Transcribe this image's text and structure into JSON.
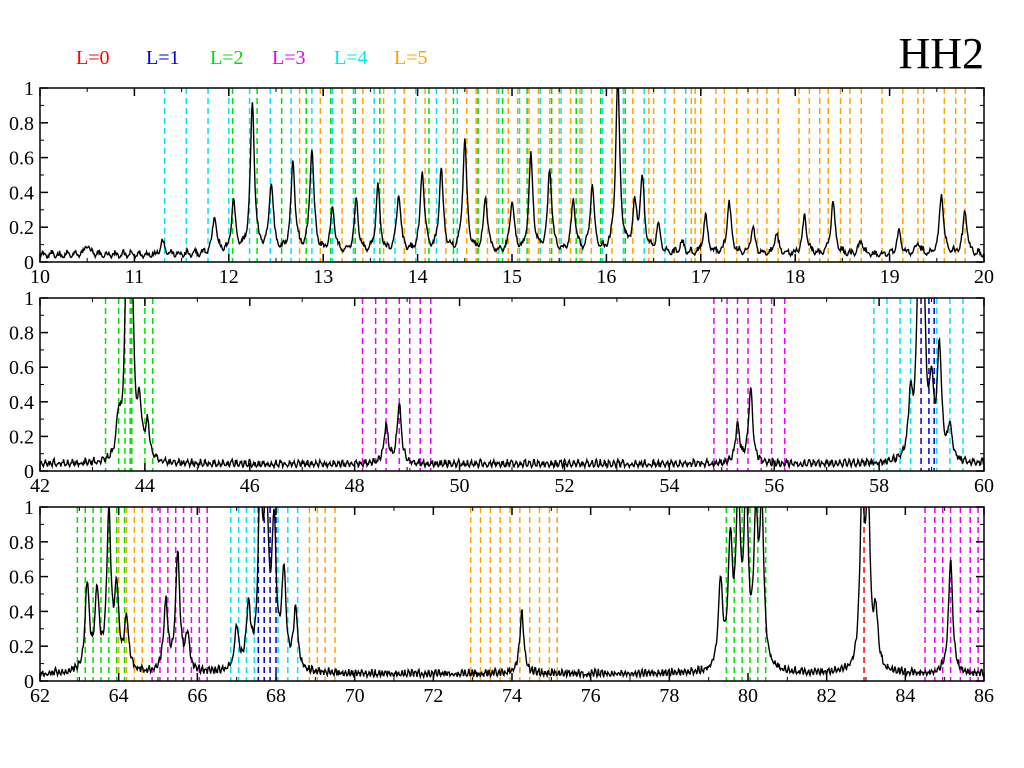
{
  "title": "HH2",
  "colors": {
    "L0": "#ff0000",
    "L1": "#0000cc",
    "L2": "#00e000",
    "L3": "#ee00ee",
    "L4": "#00e5ee",
    "L5": "#ffa500",
    "curve": "#000000"
  },
  "legend": [
    {
      "label": "L=0",
      "color": "#ff0000"
    },
    {
      "label": "L=1",
      "color": "#0000cc"
    },
    {
      "label": "L=2",
      "color": "#00e000"
    },
    {
      "label": "L=3",
      "color": "#ee00ee"
    },
    {
      "label": "L=4",
      "color": "#00e5ee"
    },
    {
      "label": "L=5",
      "color": "#ffa500"
    }
  ],
  "chart_data": [
    {
      "type": "line",
      "xlim": [
        10,
        20
      ],
      "ylim": [
        0,
        1
      ],
      "xticks": [
        "10",
        "11",
        "12",
        "13",
        "14",
        "15",
        "16",
        "17",
        "18",
        "19",
        "20"
      ],
      "yticks": [
        "0",
        "0.2",
        "0.4",
        "0.6",
        "0.8",
        "1"
      ],
      "peaks": [
        [
          11.85,
          0.22
        ],
        [
          12.05,
          0.3
        ],
        [
          12.25,
          0.85
        ],
        [
          12.45,
          0.4
        ],
        [
          12.68,
          0.52
        ],
        [
          12.88,
          0.6
        ],
        [
          13.1,
          0.26
        ],
        [
          13.35,
          0.3
        ],
        [
          13.58,
          0.38
        ],
        [
          13.8,
          0.34
        ],
        [
          14.05,
          0.47
        ],
        [
          14.25,
          0.48
        ],
        [
          14.5,
          0.65
        ],
        [
          14.72,
          0.32
        ],
        [
          15.0,
          0.3
        ],
        [
          15.2,
          0.56
        ],
        [
          15.4,
          0.48
        ],
        [
          15.65,
          0.3
        ],
        [
          15.85,
          0.39
        ],
        [
          16.12,
          1.0
        ],
        [
          16.3,
          0.25
        ],
        [
          16.38,
          0.42
        ],
        [
          16.55,
          0.15
        ],
        [
          16.8,
          0.07
        ],
        [
          17.05,
          0.22
        ],
        [
          17.3,
          0.3
        ],
        [
          17.55,
          0.15
        ],
        [
          17.8,
          0.12
        ],
        [
          18.1,
          0.22
        ],
        [
          18.4,
          0.3
        ],
        [
          18.7,
          0.08
        ],
        [
          19.1,
          0.13
        ],
        [
          19.3,
          0.07
        ],
        [
          19.55,
          0.35
        ],
        [
          19.8,
          0.25
        ],
        [
          10.5,
          0.06
        ],
        [
          11.3,
          0.08
        ]
      ],
      "lines": {
        "L4": [
          11.32,
          11.55,
          11.78,
          12.0,
          12.22,
          12.44,
          12.66,
          12.88,
          13.1,
          13.32,
          13.54,
          13.76,
          13.98,
          14.2,
          14.42,
          14.64,
          14.86,
          15.08,
          15.3,
          15.52,
          15.74,
          15.96,
          16.18,
          16.4,
          16.62,
          16.84
        ],
        "L2": [
          12.04,
          12.3,
          12.56,
          12.82,
          13.08,
          13.34,
          13.6,
          13.86,
          14.12,
          14.38,
          14.64,
          14.9,
          15.16,
          15.42,
          15.68,
          15.94,
          16.2
        ],
        "L5": [
          12.75,
          12.97,
          13.2,
          13.42,
          13.64,
          13.86,
          14.08,
          14.3,
          14.52,
          14.62,
          14.74,
          14.84,
          14.96,
          15.06,
          15.18,
          15.28,
          15.4,
          15.5,
          15.62,
          15.72,
          15.84,
          16.06,
          16.28,
          16.5,
          16.72,
          16.94,
          17.16,
          17.38,
          17.6,
          17.82,
          18.04,
          18.26,
          18.48,
          18.7,
          18.92,
          19.14,
          19.36,
          19.58,
          19.8,
          16.45,
          16.9,
          17.0,
          17.25,
          17.5,
          17.7,
          18.15,
          18.35,
          18.58,
          19.3,
          19.7
        ]
      }
    },
    {
      "type": "line",
      "xlim": [
        42,
        60
      ],
      "ylim": [
        0,
        1
      ],
      "xticks": [
        "42",
        "44",
        "46",
        "48",
        "50",
        "52",
        "54",
        "56",
        "58",
        "60"
      ],
      "yticks": [
        "0",
        "0.2",
        "0.4",
        "0.6",
        "0.8",
        "1"
      ],
      "peaks": [
        [
          43.5,
          0.22
        ],
        [
          43.65,
          1.0
        ],
        [
          43.75,
          1.0
        ],
        [
          43.9,
          0.28
        ],
        [
          44.05,
          0.2
        ],
        [
          48.6,
          0.22
        ],
        [
          48.85,
          0.35
        ],
        [
          55.3,
          0.22
        ],
        [
          55.55,
          0.43
        ],
        [
          58.6,
          0.35
        ],
        [
          58.75,
          1.0
        ],
        [
          58.85,
          0.9
        ],
        [
          59.0,
          0.4
        ],
        [
          59.15,
          0.65
        ],
        [
          59.35,
          0.2
        ]
      ],
      "lines": {
        "L2": [
          43.25,
          43.5,
          43.75,
          44.0,
          44.15,
          43.62,
          43.72
        ],
        "L3": [
          48.15,
          48.4,
          48.6,
          48.85,
          49.05,
          49.25,
          49.45,
          54.85,
          55.1,
          55.3,
          55.5,
          55.75,
          55.95,
          56.2
        ],
        "L4": [
          57.9,
          58.15,
          58.4,
          58.6,
          59.1,
          59.35,
          59.6
        ],
        "L1": [
          58.8,
          58.95,
          59.05
        ]
      }
    },
    {
      "type": "line",
      "xlim": [
        62,
        86
      ],
      "ylim": [
        0,
        1
      ],
      "xticks": [
        "62",
        "64",
        "66",
        "68",
        "70",
        "72",
        "74",
        "76",
        "78",
        "80",
        "82",
        "84",
        "86"
      ],
      "yticks": [
        "0",
        "0.2",
        "0.4",
        "0.6",
        "0.8",
        "1"
      ],
      "peaks": [
        [
          63.2,
          0.5
        ],
        [
          63.45,
          0.45
        ],
        [
          63.75,
          0.9
        ],
        [
          63.95,
          0.45
        ],
        [
          64.2,
          0.3
        ],
        [
          65.2,
          0.4
        ],
        [
          65.5,
          0.68
        ],
        [
          65.75,
          0.2
        ],
        [
          67.0,
          0.25
        ],
        [
          67.3,
          0.35
        ],
        [
          67.6,
          1.0
        ],
        [
          67.75,
          1.0
        ],
        [
          67.95,
          0.8
        ],
        [
          68.2,
          0.55
        ],
        [
          68.5,
          0.35
        ],
        [
          74.25,
          0.35
        ],
        [
          79.3,
          0.5
        ],
        [
          79.55,
          0.7
        ],
        [
          79.75,
          1.0
        ],
        [
          79.95,
          1.0
        ],
        [
          80.2,
          0.8
        ],
        [
          80.35,
          0.9
        ],
        [
          82.9,
          1.0
        ],
        [
          83.05,
          1.0
        ],
        [
          83.25,
          0.3
        ],
        [
          85.15,
          0.65
        ]
      ],
      "lines": {
        "L2": [
          62.95,
          63.15,
          63.35,
          63.55,
          63.75,
          63.95,
          64.15,
          79.45,
          79.65,
          79.85,
          80.05,
          80.25,
          80.45
        ],
        "L3": [
          64.85,
          65.05,
          65.25,
          65.45,
          65.65,
          65.85,
          66.05,
          66.25,
          84.5,
          84.75,
          84.95,
          85.15,
          85.4,
          85.65,
          85.85
        ],
        "L5": [
          64.0,
          64.2,
          64.4,
          64.6,
          68.85,
          69.05,
          69.25,
          69.5,
          72.95,
          73.2,
          73.45,
          73.7,
          73.95,
          74.2,
          74.45,
          74.7,
          74.95,
          75.15
        ],
        "L4": [
          66.85,
          67.05,
          67.25,
          67.45,
          68.05,
          68.3,
          68.55
        ],
        "L1": [
          67.55,
          67.7,
          67.85,
          68.0
        ],
        "L0": [
          82.95
        ]
      }
    }
  ]
}
